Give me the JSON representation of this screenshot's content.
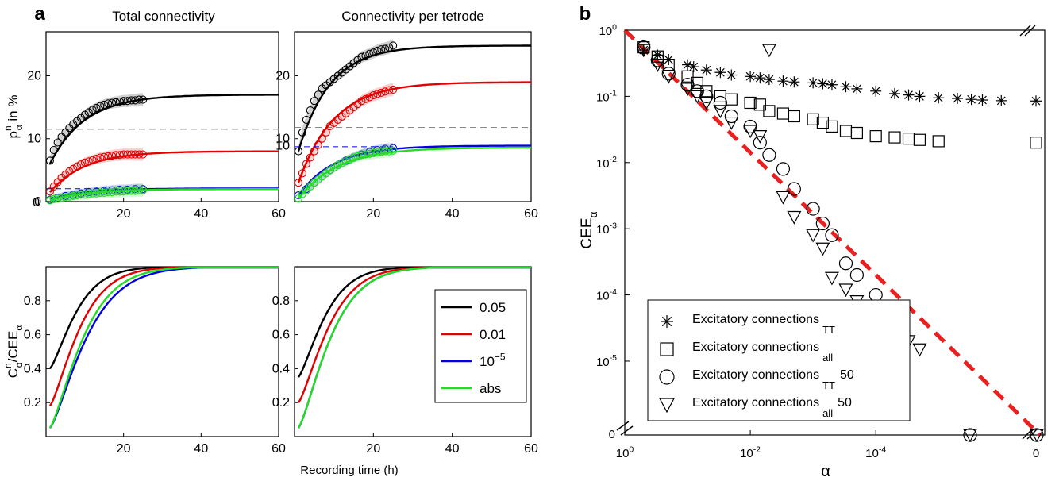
{
  "panel_a": {
    "label": "a",
    "col_titles": [
      "Total connectivity",
      "Connectivity per tetrode"
    ],
    "xlabel": "Recording time (h)"
  },
  "panel_b": {
    "label": "b"
  },
  "chart_data": [
    {
      "type": "line",
      "panel": "a-top-left",
      "title": "Total connectivity",
      "ylabel": "p^n_α in %",
      "xlim": [
        0,
        60
      ],
      "ylim": [
        0,
        27
      ],
      "x_ticks": [
        "20",
        "40",
        "60"
      ],
      "y_ticks": [
        "0",
        "10",
        "20"
      ],
      "reference_level": 11.5,
      "series": [
        {
          "key": "0.05",
          "color": "#000000",
          "asymptote": 17,
          "start": 6,
          "tau": 9,
          "obs_x": [
            1,
            2,
            3,
            4,
            5,
            6,
            7,
            8,
            9,
            10,
            11,
            12,
            13,
            14,
            15,
            16,
            17,
            18,
            19,
            20,
            21,
            22,
            23,
            24,
            25
          ],
          "obs_y": [
            6.5,
            8.2,
            9.4,
            10.3,
            11.0,
            11.7,
            12.3,
            12.8,
            13.3,
            13.8,
            14.2,
            14.6,
            14.9,
            15.2,
            15.4,
            15.6,
            15.7,
            15.8,
            15.9,
            16.0,
            16.0,
            16.1,
            16.1,
            16.2,
            16.2
          ]
        },
        {
          "key": "0.01",
          "color": "#e00000",
          "asymptote": 8,
          "start": 1.5,
          "tau": 9,
          "obs_x": [
            1,
            2,
            3,
            4,
            5,
            6,
            7,
            8,
            9,
            10,
            11,
            12,
            13,
            14,
            15,
            16,
            17,
            18,
            19,
            20,
            21,
            22,
            23,
            24,
            25
          ],
          "obs_y": [
            1.6,
            2.4,
            3.1,
            3.8,
            4.3,
            4.8,
            5.2,
            5.6,
            5.9,
            6.2,
            6.4,
            6.6,
            6.8,
            7.0,
            7.1,
            7.2,
            7.3,
            7.4,
            7.4,
            7.5,
            7.5,
            7.5,
            7.5,
            7.5,
            7.5
          ]
        },
        {
          "key": "10^-5",
          "color": "#0000e0",
          "asymptote": 2.1,
          "start": 0.3,
          "tau": 9,
          "obs_x": [
            1,
            3,
            5,
            7,
            9,
            11,
            13,
            15,
            17,
            19,
            21,
            23,
            25
          ],
          "obs_y": [
            0.3,
            0.6,
            0.9,
            1.1,
            1.3,
            1.5,
            1.6,
            1.7,
            1.8,
            1.9,
            1.9,
            2.0,
            2.0
          ]
        },
        {
          "key": "abs",
          "color": "#22dd22",
          "asymptote": 2.0,
          "start": 0.2,
          "tau": 10,
          "obs_x": [
            1,
            2,
            3,
            4,
            5,
            6,
            7,
            8,
            9,
            10,
            11,
            12,
            13,
            14,
            15,
            16,
            17,
            18,
            19,
            20,
            21,
            22,
            23,
            24,
            25
          ],
          "obs_y": [
            0.2,
            0.4,
            0.5,
            0.6,
            0.7,
            0.8,
            0.9,
            1.0,
            1.1,
            1.1,
            1.2,
            1.3,
            1.3,
            1.4,
            1.4,
            1.5,
            1.5,
            1.6,
            1.6,
            1.6,
            1.7,
            1.7,
            1.7,
            1.8,
            1.8
          ]
        }
      ]
    },
    {
      "type": "line",
      "panel": "a-top-right",
      "title": "Connectivity per tetrode",
      "xlim": [
        0,
        60
      ],
      "ylim": [
        0,
        27
      ],
      "x_ticks": [
        "20",
        "40",
        "60"
      ],
      "y_ticks": [
        "10",
        "20"
      ],
      "reference_level": 11.8,
      "series": [
        {
          "key": "0.05",
          "color": "#000000",
          "asymptote": 24.8,
          "start": 8,
          "tau": 8,
          "obs_x": [
            1,
            2,
            3,
            4,
            5,
            6,
            7,
            8,
            9,
            10,
            11,
            12,
            13,
            14,
            15,
            16,
            17,
            18,
            19,
            20,
            21,
            22,
            23,
            24,
            25
          ],
          "obs_y": [
            8,
            11,
            13,
            14.5,
            16,
            17,
            18,
            18.5,
            19,
            19.5,
            20,
            20.5,
            21,
            21.5,
            22,
            22.5,
            23,
            23.2,
            23.5,
            23.7,
            24,
            24.2,
            24.3,
            24.5,
            24.8
          ]
        },
        {
          "key": "0.01",
          "color": "#e00000",
          "asymptote": 19,
          "start": 3,
          "tau": 9,
          "obs_x": [
            1,
            2,
            3,
            4,
            5,
            6,
            7,
            8,
            9,
            10,
            11,
            12,
            13,
            14,
            15,
            16,
            17,
            18,
            19,
            20,
            21,
            22,
            23,
            24,
            25
          ],
          "obs_y": [
            3,
            4.5,
            6,
            7,
            8,
            9,
            10,
            11,
            12,
            12.5,
            13,
            13.5,
            14,
            14.5,
            15,
            15.5,
            16,
            16.3,
            16.6,
            16.9,
            17.1,
            17.3,
            17.5,
            17.7,
            17.8
          ]
        },
        {
          "key": "10^-5",
          "color": "#0000e0",
          "asymptote": 8.9,
          "start": 1,
          "tau": 9,
          "obs_x": [
            1,
            3,
            5,
            7,
            9,
            11,
            13,
            15,
            17,
            19,
            21,
            23,
            25
          ],
          "obs_y": [
            1,
            2,
            3,
            4,
            5,
            5.8,
            6.5,
            7,
            7.5,
            7.9,
            8.2,
            8.4,
            8.5
          ]
        },
        {
          "key": "abs",
          "color": "#22dd22",
          "asymptote": 8.6,
          "start": 0.5,
          "tau": 10,
          "obs_x": [
            1,
            2,
            3,
            4,
            5,
            6,
            7,
            8,
            9,
            10,
            11,
            12,
            13,
            14,
            15,
            16,
            17,
            18,
            19,
            20,
            21,
            22,
            23,
            24,
            25
          ],
          "obs_y": [
            0.5,
            1.2,
            1.8,
            2.4,
            3,
            3.5,
            4,
            4.5,
            5,
            5.4,
            5.8,
            6.1,
            6.4,
            6.7,
            7,
            7.2,
            7.4,
            7.5,
            7.6,
            7.7,
            7.8,
            7.9,
            8,
            8,
            8.1
          ]
        }
      ],
      "annotation": "10"
    },
    {
      "type": "line",
      "panel": "a-bottom-left",
      "ylabel": "C^n_α/CEE_α",
      "xlim": [
        0,
        60
      ],
      "ylim": [
        0,
        1
      ],
      "x_ticks": [
        "20",
        "40",
        "60"
      ],
      "y_ticks": [
        "0.2",
        "0.4",
        "0.6",
        "0.8"
      ],
      "series": [
        {
          "key": "0.05",
          "color": "#000000",
          "start": 0.4,
          "tau": 8
        },
        {
          "key": "0.01",
          "color": "#e00000",
          "start": 0.18,
          "tau": 9
        },
        {
          "key": "10^-5",
          "color": "#0000e0",
          "start": 0.05,
          "tau": 11
        },
        {
          "key": "abs",
          "color": "#22dd22",
          "start": 0.05,
          "tau": 10
        }
      ]
    },
    {
      "type": "line",
      "panel": "a-bottom-right",
      "xlim": [
        0,
        60
      ],
      "ylim": [
        0,
        1
      ],
      "x_ticks": [
        "20",
        "40",
        "60"
      ],
      "y_ticks": [
        "0.2",
        "0.4",
        "0.6",
        "0.8"
      ],
      "legend": {
        "position": "right",
        "entries": [
          {
            "label": "0.05",
            "color": "#000000"
          },
          {
            "label": "0.01",
            "color": "#e00000"
          },
          {
            "label": "10",
            "sup": "−5",
            "color": "#0000e0"
          },
          {
            "label": "abs",
            "color": "#22dd22"
          }
        ]
      },
      "series": [
        {
          "key": "0.05",
          "color": "#000000",
          "start": 0.35,
          "tau": 8
        },
        {
          "key": "0.01",
          "color": "#e00000",
          "start": 0.2,
          "tau": 9
        },
        {
          "key": "10^-5",
          "color": "#0000e0",
          "start": 0.05,
          "tau": 9.5
        },
        {
          "key": "abs",
          "color": "#22dd22",
          "start": 0.05,
          "tau": 9.5
        }
      ]
    },
    {
      "type": "scatter",
      "panel": "b",
      "xlabel": "α",
      "ylabel": "CEE",
      "ylabel_sub": "α",
      "x_scale": "log-reversed",
      "y_scale": "log",
      "x_ticks": [
        {
          "base": "10",
          "exp": "0",
          "value": 1
        },
        {
          "base": "10",
          "exp": "-2",
          "value": 0.01
        },
        {
          "base": "10",
          "exp": "-4",
          "value": 0.0001
        }
      ],
      "x_zero_tick": "0",
      "y_ticks": [
        {
          "base": "10",
          "exp": "0",
          "value": 1
        },
        {
          "base": "10",
          "exp": "-1",
          "value": 0.1
        },
        {
          "base": "10",
          "exp": "-2",
          "value": 0.01
        },
        {
          "base": "10",
          "exp": "-3",
          "value": 0.001
        },
        {
          "base": "10",
          "exp": "-4",
          "value": 0.0001
        },
        {
          "base": "10",
          "exp": "-5",
          "value": 1e-05
        }
      ],
      "y_zero_tick": "0",
      "reference_line": {
        "color": "#e82020",
        "style": "dashed",
        "from": [
          1,
          1
        ],
        "to": [
          0,
          0
        ]
      },
      "legend": {
        "position": "bottom-left",
        "entries": [
          {
            "marker": "star",
            "label": "Excitatory connections",
            "sub": "TT",
            "suffix": ""
          },
          {
            "marker": "square",
            "label": "Excitatory connections",
            "sub": "all",
            "suffix": ""
          },
          {
            "marker": "circle",
            "label": "Excitatory connections",
            "sub": "TT",
            "suffix": "50"
          },
          {
            "marker": "triangle",
            "label": "Excitatory connections",
            "sub": "all",
            "suffix": "50"
          }
        ]
      },
      "series": [
        {
          "marker": "star",
          "name": "Excitatory connections TT",
          "x": [
            0.5,
            0.3,
            0.2,
            0.1,
            0.08,
            0.05,
            0.03,
            0.02,
            0.01,
            0.007,
            0.005,
            0.003,
            0.002,
            0.001,
            0.0007,
            0.0005,
            0.0003,
            0.0002,
            0.0001,
            5e-05,
            3e-05,
            2e-05,
            1e-05,
            5e-06,
            3e-06,
            2e-06,
            1e-06,
            0
          ],
          "y": [
            0.5,
            0.42,
            0.36,
            0.3,
            0.28,
            0.25,
            0.23,
            0.21,
            0.2,
            0.19,
            0.18,
            0.17,
            0.165,
            0.16,
            0.155,
            0.15,
            0.14,
            0.13,
            0.12,
            0.11,
            0.105,
            0.1,
            0.095,
            0.093,
            0.09,
            0.088,
            0.086,
            0.085
          ]
        },
        {
          "marker": "square",
          "name": "Excitatory connections all",
          "x": [
            0.5,
            0.3,
            0.2,
            0.1,
            0.07,
            0.05,
            0.03,
            0.02,
            0.01,
            0.007,
            0.005,
            0.003,
            0.002,
            0.001,
            0.0007,
            0.0005,
            0.0003,
            0.0002,
            0.0001,
            5e-05,
            3e-05,
            2e-05,
            1e-05,
            0
          ],
          "y": [
            0.55,
            0.4,
            0.3,
            0.2,
            0.16,
            0.12,
            0.1,
            0.09,
            0.08,
            0.075,
            0.06,
            0.055,
            0.05,
            0.045,
            0.04,
            0.035,
            0.03,
            0.028,
            0.025,
            0.024,
            0.023,
            0.022,
            0.021,
            0.02
          ]
        },
        {
          "marker": "circle",
          "name": "Excitatory connections TT 50",
          "x": [
            0.5,
            0.3,
            0.2,
            0.1,
            0.07,
            0.05,
            0.03,
            0.02,
            0.01,
            0.007,
            0.005,
            0.003,
            0.002,
            0.001,
            0.0007,
            0.0005,
            0.0003,
            0.0002,
            0.0001
          ],
          "y": [
            0.55,
            0.35,
            0.22,
            0.15,
            0.12,
            0.1,
            0.08,
            0.05,
            0.035,
            0.02,
            0.013,
            0.008,
            0.004,
            0.002,
            0.0012,
            0.0008,
            0.0003,
            0.0002,
            0.0001
          ]
        },
        {
          "marker": "triangle",
          "name": "Excitatory connections all 50",
          "x": [
            0.5,
            0.3,
            0.2,
            0.1,
            0.07,
            0.05,
            0.03,
            0.02,
            0.01,
            0.007,
            0.005,
            0.003,
            0.002,
            0.001,
            0.0007,
            0.0005,
            0.0003,
            0.0002,
            0.0001,
            5e-05,
            3e-05,
            2e-05
          ],
          "y": [
            0.5,
            0.3,
            0.2,
            0.13,
            0.1,
            0.08,
            0.06,
            0.04,
            0.03,
            0.025,
            0.5,
            0.003,
            0.0015,
            0.0008,
            0.0005,
            0.00018,
            0.00012,
            8e-05,
            5e-05,
            3e-05,
            2e-05,
            1.5e-05
          ]
        }
      ]
    }
  ]
}
